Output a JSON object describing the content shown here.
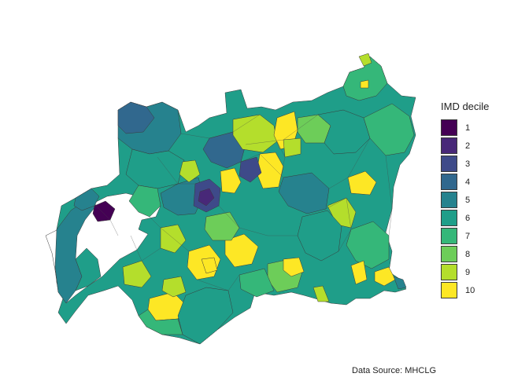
{
  "legend": {
    "title": "IMD decile",
    "items": [
      {
        "label": "1",
        "color": "#440154"
      },
      {
        "label": "2",
        "color": "#482878"
      },
      {
        "label": "3",
        "color": "#3E4A89"
      },
      {
        "label": "4",
        "color": "#31688E"
      },
      {
        "label": "5",
        "color": "#26828E"
      },
      {
        "label": "6",
        "color": "#1F9E89"
      },
      {
        "label": "7",
        "color": "#35B779"
      },
      {
        "label": "8",
        "color": "#6DCD59"
      },
      {
        "label": "9",
        "color": "#B4DE2C"
      },
      {
        "label": "10",
        "color": "#FDE725"
      }
    ]
  },
  "caption": "Data Source: MHCLG"
}
